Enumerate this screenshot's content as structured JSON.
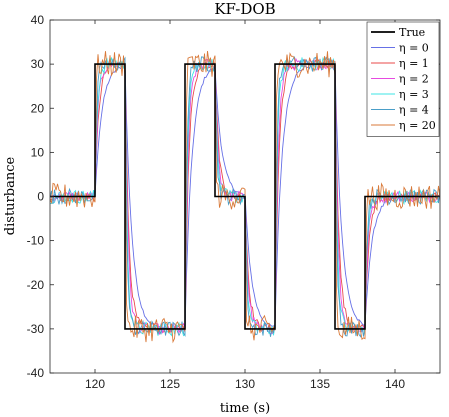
{
  "chart_data": {
    "type": "line",
    "title": "KF-DOB",
    "xlabel": "time (s)",
    "ylabel": "disturbance",
    "xlim": [
      117,
      143
    ],
    "ylim": [
      -40,
      40
    ],
    "xticks": [
      120,
      125,
      130,
      135,
      140
    ],
    "yticks": [
      -40,
      -30,
      -20,
      -10,
      0,
      10,
      20,
      30,
      40
    ],
    "grid": false,
    "legend_position": "top-right",
    "true_signal": {
      "name": "True",
      "color": "#000000",
      "x": [
        117,
        120,
        120,
        122,
        122,
        126,
        126,
        128,
        128,
        130,
        130,
        132,
        132,
        136,
        136,
        138,
        138,
        143
      ],
      "y": [
        0,
        0,
        30,
        30,
        -30,
        -30,
        30,
        30,
        0,
        0,
        -30,
        -30,
        30,
        30,
        -30,
        -30,
        0,
        0
      ]
    },
    "series": [
      {
        "name": "η = 0",
        "color": "#6670e6",
        "lag": 0.45,
        "noise": 0.4
      },
      {
        "name": "η = 1",
        "color": "#e84a4a",
        "lag": 0.25,
        "noise": 1.0
      },
      {
        "name": "η = 2",
        "color": "#e64ae0",
        "lag": 0.2,
        "noise": 1.3
      },
      {
        "name": "η = 3",
        "color": "#3ee6e6",
        "lag": 0.15,
        "noise": 1.6
      },
      {
        "name": "η = 4",
        "color": "#4a9ec8",
        "lag": 0.12,
        "noise": 1.8
      },
      {
        "name": "η = 20",
        "color": "#d97a3a",
        "lag": 0.05,
        "noise": 3.0
      }
    ]
  }
}
